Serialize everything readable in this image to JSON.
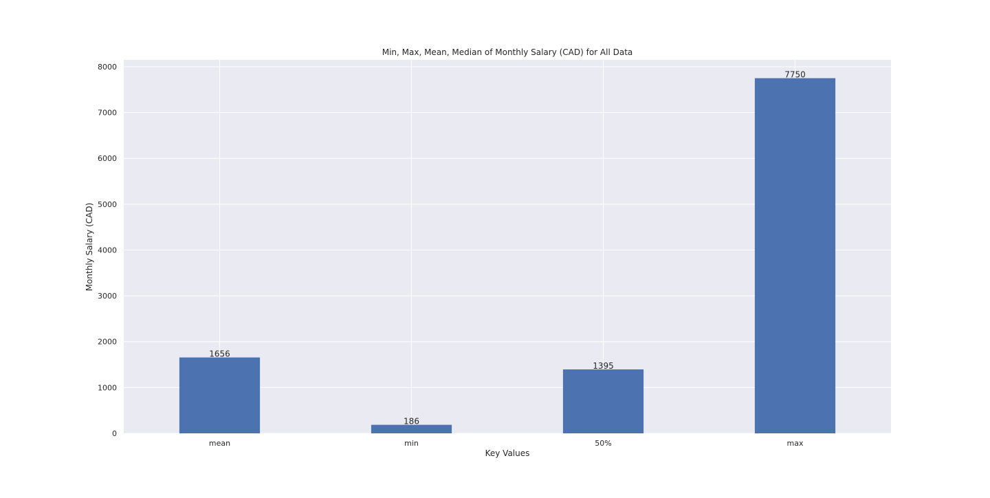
{
  "chart_data": {
    "type": "bar",
    "title": "Min, Max, Mean, Median of Monthly Salary (CAD) for All Data",
    "xlabel": "Key Values",
    "ylabel": "Monthly Salary (CAD)",
    "categories": [
      "mean",
      "min",
      "50%",
      "max"
    ],
    "values": [
      1656,
      186,
      1395,
      7750
    ],
    "data_labels": [
      "1656",
      "186",
      "1395",
      "7750"
    ],
    "ylim": [
      0,
      8150
    ],
    "yticks": [
      0,
      1000,
      2000,
      3000,
      4000,
      5000,
      6000,
      7000,
      8000
    ],
    "ytick_labels": [
      "0",
      "1000",
      "2000",
      "3000",
      "4000",
      "5000",
      "6000",
      "7000",
      "8000"
    ],
    "grid": true,
    "legend": "none",
    "bar_color": "#4c72b0",
    "plot_background": "#eaeaf2",
    "grid_color": "#ffffff"
  }
}
